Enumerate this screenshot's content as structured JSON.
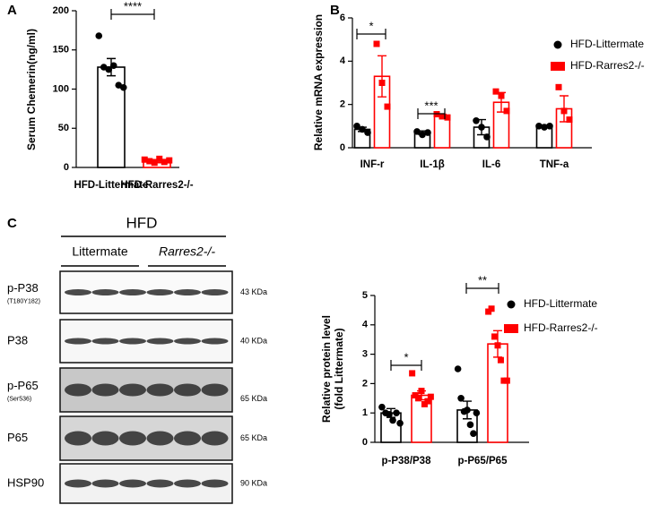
{
  "panel_labels": [
    "A",
    "B",
    "C"
  ],
  "chart_data": [
    {
      "type": "bar",
      "y_label": [
        "Serum Chemerin(ng/ml)"
      ],
      "categories": [
        "HFD-Littermate",
        "HFD-Rarres2-/-"
      ],
      "values": [
        128,
        8
      ],
      "errors": [
        11,
        2
      ],
      "points": [
        [
          168,
          128,
          125,
          130,
          105,
          102
        ],
        [
          10,
          8,
          6,
          11,
          7,
          9
        ]
      ],
      "colors": [
        "#000000",
        "#ff0000"
      ],
      "markers": [
        "circle",
        "square"
      ],
      "ylim": [
        0,
        200
      ],
      "yticks": [
        0,
        50,
        100,
        150,
        200
      ],
      "annotations": [
        "****"
      ]
    },
    {
      "type": "bar",
      "y_label": [
        "Relative mRNA expression"
      ],
      "categories": [
        "INF-r",
        "IL-1β",
        "IL-6",
        "TNF-a"
      ],
      "series": [
        {
          "name": "HFD-Littermate",
          "color": "#000000",
          "marker": "circle",
          "values": [
            0.85,
            0.7,
            0.95,
            1.0
          ],
          "errors": [
            0.1,
            0.08,
            0.35,
            0.05
          ],
          "points": [
            [
              1.0,
              0.85,
              0.7
            ],
            [
              0.75,
              0.6,
              0.7
            ],
            [
              1.25,
              0.95,
              0.5
            ],
            [
              1.0,
              0.95,
              1.0
            ]
          ]
        },
        {
          "name": "HFD-Rarres2-/-",
          "color": "#ff0000",
          "marker": "square",
          "values": [
            3.3,
            1.5,
            2.1,
            1.8
          ],
          "errors": [
            0.95,
            0.05,
            0.45,
            0.6
          ],
          "points": [
            [
              4.8,
              3.0,
              1.9
            ],
            [
              1.55,
              1.45,
              1.4
            ],
            [
              2.6,
              2.4,
              1.7
            ],
            [
              2.8,
              1.7,
              1.3
            ]
          ]
        }
      ],
      "ylim": [
        0,
        6
      ],
      "yticks": [
        0,
        2,
        4,
        6
      ],
      "annotations": [
        "*",
        "***"
      ]
    },
    {
      "type": "bar",
      "y_label": [
        "Relative protein level",
        "(fold Littermate)"
      ],
      "categories": [
        "p-P38/P38",
        "p-P65/P65"
      ],
      "series": [
        {
          "name": "HFD-Littermate",
          "color": "#000000",
          "marker": "circle",
          "values": [
            1.0,
            1.1
          ],
          "errors": [
            0.15,
            0.3
          ],
          "points": [
            [
              1.2,
              1.0,
              0.95,
              0.75,
              1.0,
              0.65
            ],
            [
              2.5,
              1.5,
              1.05,
              1.1,
              0.6,
              0.3,
              1.0
            ]
          ]
        },
        {
          "name": "HFD-Rarres2-/-",
          "color": "#ff0000",
          "marker": "square",
          "values": [
            1.6,
            3.35
          ],
          "errors": [
            0.15,
            0.45
          ],
          "points": [
            [
              2.35,
              1.6,
              1.5,
              1.75,
              1.3,
              1.4,
              1.55
            ],
            [
              4.45,
              4.55,
              3.6,
              3.3,
              2.8,
              2.1,
              2.1
            ]
          ]
        }
      ],
      "ylim": [
        0,
        5
      ],
      "yticks": [
        0,
        1,
        2,
        3,
        4,
        5
      ],
      "annotations": [
        "*",
        "**"
      ]
    }
  ],
  "blot": {
    "title": "HFD",
    "groups": [
      "Littermate",
      "Rarres2-/-"
    ],
    "rows": [
      {
        "label": "p-P38",
        "sublabel": "(T180Y182)",
        "size": "43 KDa"
      },
      {
        "label": "P38",
        "size": "40 KDa"
      },
      {
        "label": "p-P65",
        "sublabel": "(Ser536)",
        "size": "65 KDa"
      },
      {
        "label": "P65",
        "size": "65 KDa"
      },
      {
        "label": "HSP90",
        "size": "90 KDa"
      }
    ]
  }
}
